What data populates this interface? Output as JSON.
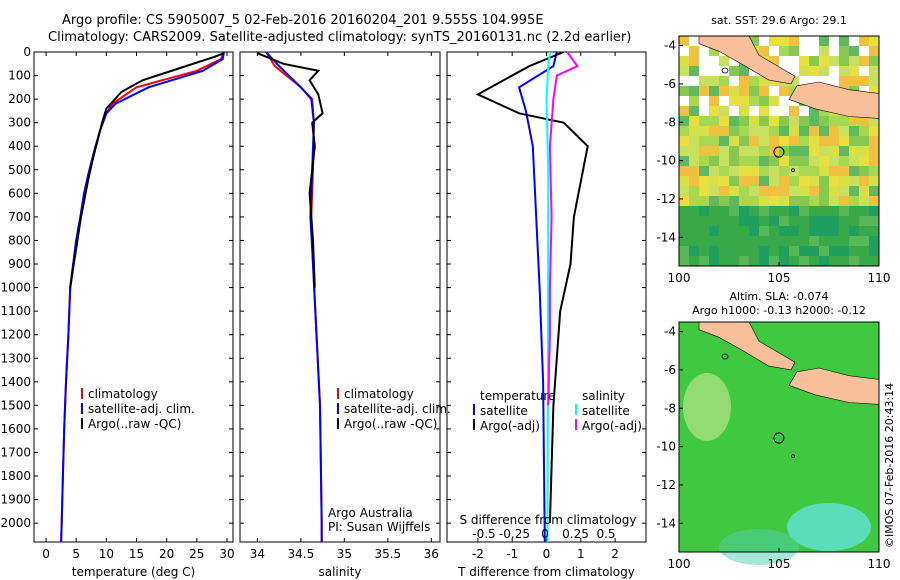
{
  "title_line1": "Argo profile: CS 5905007_5 02-Feb-2016 20160204_201 9.555S 104.995E",
  "title_line2": "Climatology: CARS2009. Satellite-adjusted climatology: synTS_20160131.nc (2.2d earlier)",
  "credit": "©IMOS 07-Feb-2016 20:43:14",
  "colors": {
    "clim": "#ff0000",
    "sat": "#0000ff",
    "argo": "#000000",
    "sat_s": "#00ffff",
    "argo_s": "#ff00ff",
    "land": "#f7c09a"
  },
  "depth_axis": {
    "ticks": [
      0,
      100,
      200,
      300,
      400,
      500,
      600,
      700,
      800,
      900,
      1000,
      1100,
      1200,
      1300,
      1400,
      1500,
      1600,
      1700,
      1800,
      1900,
      2000
    ],
    "range": [
      0,
      2080
    ]
  },
  "panel_temp": {
    "xlabel": "temperature (deg C)",
    "xticks": [
      0,
      5,
      10,
      15,
      20,
      25,
      30
    ],
    "xlim": [
      -2,
      31
    ],
    "legend": [
      "climatology",
      "satellite-adj. clim.",
      "Argo(..raw -QC)"
    ]
  },
  "panel_sal": {
    "xlabel": "salinity",
    "xticks": [
      34,
      34.5,
      35,
      35.5,
      36
    ],
    "xlim": [
      33.8,
      36.1
    ],
    "legend": [
      "climatology",
      "satellite-adj. clim.",
      "Argo(..raw -QC)"
    ],
    "note1": "Argo Australia",
    "note2": "PI: Susan Wijffels"
  },
  "panel_diff": {
    "xlabel": "T difference from climatology",
    "xticks": [
      -2,
      -1,
      0,
      1,
      2
    ],
    "top_label": "S difference from climatology",
    "sticks": [
      "-0.5",
      "-0.25",
      "0",
      "0.25",
      "0.5"
    ],
    "xlim": [
      -2.9,
      2.9
    ],
    "legend_t_title": "temperature",
    "legend_s_title": "salinity",
    "legend_t": [
      "satellite",
      "Argo(-adj)"
    ],
    "legend_s": [
      "satellite",
      "Argo(-adj)"
    ]
  },
  "map_sst": {
    "title": "sat. SST: 29.6  Argo: 29.1",
    "xticks": [
      100,
      105,
      110
    ],
    "yticks": [
      -4,
      -6,
      -8,
      -10,
      -12,
      -14
    ]
  },
  "map_sla": {
    "title1": "Altim. SLA: -0.074",
    "title2": "Argo h1000: -0.13 h2000: -0.12",
    "xticks": [
      100,
      105,
      110
    ],
    "yticks": [
      -4,
      -6,
      -8,
      -10,
      -12,
      -14
    ]
  },
  "chart_data": [
    {
      "type": "line",
      "title": "",
      "xlabel": "temperature (deg C)",
      "ylabel": "",
      "series": [
        {
          "name": "climatology",
          "points": [
            [
              29.5,
              0
            ],
            [
              29,
              30
            ],
            [
              25,
              80
            ],
            [
              15,
              150
            ],
            [
              11,
              220
            ],
            [
              10,
              260
            ],
            [
              9,
              330
            ],
            [
              8,
              420
            ],
            [
              7,
              520
            ],
            [
              6.3,
              600
            ],
            [
              5.7,
              700
            ],
            [
              5,
              800
            ],
            [
              4.5,
              900
            ],
            [
              4,
              1000
            ],
            [
              3.7,
              1200
            ],
            [
              3.3,
              1400
            ],
            [
              3,
              1600
            ],
            [
              2.8,
              1800
            ],
            [
              2.6,
              2000
            ],
            [
              2.5,
              2080
            ]
          ]
        },
        {
          "name": "satellite-adj. clim.",
          "points": [
            [
              29.5,
              0
            ],
            [
              29.3,
              30
            ],
            [
              26,
              80
            ],
            [
              17,
              150
            ],
            [
              11.5,
              220
            ],
            [
              10,
              260
            ],
            [
              9,
              330
            ],
            [
              8,
              420
            ],
            [
              7,
              520
            ],
            [
              6.3,
              600
            ],
            [
              5.7,
              700
            ],
            [
              5,
              800
            ],
            [
              4.5,
              900
            ],
            [
              4,
              1000
            ],
            [
              3.7,
              1200
            ],
            [
              3.3,
              1400
            ],
            [
              3,
              1600
            ],
            [
              2.8,
              1800
            ],
            [
              2.6,
              2000
            ],
            [
              2.5,
              2080
            ]
          ]
        },
        {
          "name": "Argo(..raw -QC)",
          "points": [
            [
              29.5,
              5
            ],
            [
              28,
              20
            ],
            [
              22,
              70
            ],
            [
              16,
              120
            ],
            [
              12.5,
              170
            ],
            [
              10,
              240
            ],
            [
              9.3,
              300
            ],
            [
              8.5,
              380
            ],
            [
              7.8,
              450
            ],
            [
              7,
              540
            ],
            [
              6.4,
              620
            ],
            [
              5.8,
              700
            ],
            [
              5.2,
              800
            ],
            [
              4.6,
              900
            ],
            [
              4,
              1000
            ]
          ]
        }
      ]
    },
    {
      "type": "line",
      "title": "",
      "xlabel": "salinity",
      "ylabel": "",
      "series": [
        {
          "name": "climatology",
          "points": [
            [
              34.1,
              0
            ],
            [
              34.2,
              60
            ],
            [
              34.5,
              150
            ],
            [
              34.63,
              200
            ],
            [
              34.65,
              300
            ],
            [
              34.64,
              500
            ],
            [
              34.62,
              700
            ],
            [
              34.64,
              900
            ],
            [
              34.68,
              1200
            ],
            [
              34.72,
              1500
            ],
            [
              34.74,
              2000
            ],
            [
              34.74,
              2080
            ]
          ]
        },
        {
          "name": "satellite-adj. clim.",
          "points": [
            [
              34.1,
              0
            ],
            [
              34.25,
              60
            ],
            [
              34.5,
              150
            ],
            [
              34.62,
              200
            ],
            [
              34.65,
              300
            ],
            [
              34.63,
              500
            ],
            [
              34.61,
              700
            ],
            [
              34.64,
              900
            ],
            [
              34.68,
              1200
            ],
            [
              34.72,
              1500
            ],
            [
              34.74,
              2000
            ],
            [
              34.74,
              2080
            ]
          ]
        },
        {
          "name": "Argo(..raw -QC)",
          "points": [
            [
              34.0,
              5
            ],
            [
              34.3,
              50
            ],
            [
              34.7,
              80
            ],
            [
              34.6,
              120
            ],
            [
              34.7,
              180
            ],
            [
              34.75,
              260
            ],
            [
              34.63,
              300
            ],
            [
              34.66,
              400
            ],
            [
              34.6,
              600
            ],
            [
              34.64,
              800
            ],
            [
              34.66,
              1000
            ]
          ]
        }
      ]
    },
    {
      "type": "line",
      "title": "",
      "xlabel": "T difference from climatology",
      "ylabel": "",
      "series": [
        {
          "name": "temperature satellite",
          "points": [
            [
              0.3,
              0
            ],
            [
              0.2,
              60
            ],
            [
              -0.8,
              150
            ],
            [
              -0.6,
              250
            ],
            [
              -0.4,
              400
            ],
            [
              -0.3,
              700
            ],
            [
              -0.2,
              1000
            ],
            [
              -0.1,
              1400
            ],
            [
              -0.05,
              2080
            ]
          ]
        },
        {
          "name": "temperature Argo(-adj)",
          "points": [
            [
              0.5,
              0
            ],
            [
              -0.5,
              60
            ],
            [
              -2,
              180
            ],
            [
              -0.8,
              260
            ],
            [
              0.5,
              300
            ],
            [
              1.2,
              400
            ],
            [
              1.0,
              550
            ],
            [
              0.8,
              700
            ],
            [
              0.7,
              900
            ],
            [
              0.4,
              1100
            ],
            [
              0.2,
              1500
            ],
            [
              0.1,
              2000
            ]
          ]
        },
        {
          "name": "salinity satellite",
          "points": [
            [
              0.1,
              0
            ],
            [
              0.05,
              60
            ],
            [
              0.0,
              200
            ],
            [
              0.05,
              500
            ],
            [
              0.05,
              1000
            ],
            [
              0.03,
              2080
            ]
          ]
        },
        {
          "name": "salinity Argo(-adj)",
          "points": [
            [
              0.6,
              0
            ],
            [
              0.9,
              60
            ],
            [
              0.3,
              100
            ],
            [
              0.2,
              200
            ],
            [
              0.1,
              400
            ],
            [
              0.15,
              700
            ],
            [
              0.1,
              1000
            ],
            [
              0.1,
              1200
            ],
            [
              0.05,
              1500
            ]
          ]
        }
      ]
    }
  ]
}
